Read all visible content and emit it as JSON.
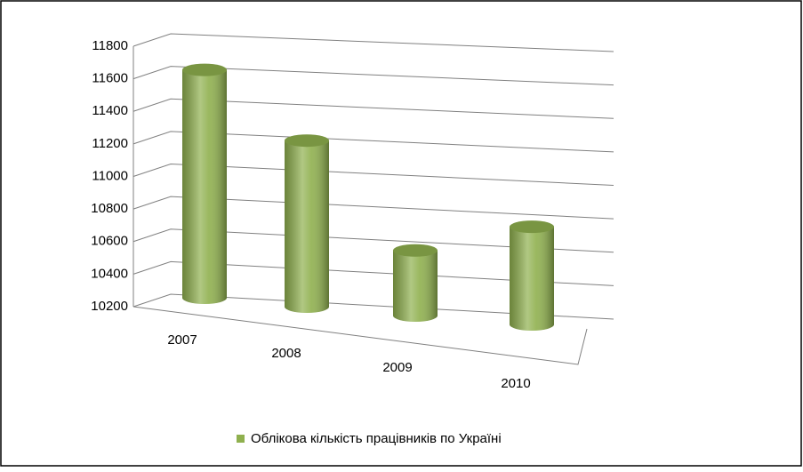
{
  "chart_data": {
    "type": "bar",
    "categories": [
      "2007",
      "2008",
      "2009",
      "2010"
    ],
    "series": [
      {
        "name": "Облікова кількість працівників по Україні",
        "color": "#8fb04e",
        "values": [
          11600,
          11220,
          10600,
          10800
        ]
      }
    ],
    "ylim": [
      10200,
      11800
    ],
    "yticks": [
      10200,
      10400,
      10600,
      10800,
      11000,
      11200,
      11400,
      11600,
      11800
    ],
    "grid": true,
    "legend": "bottom"
  }
}
